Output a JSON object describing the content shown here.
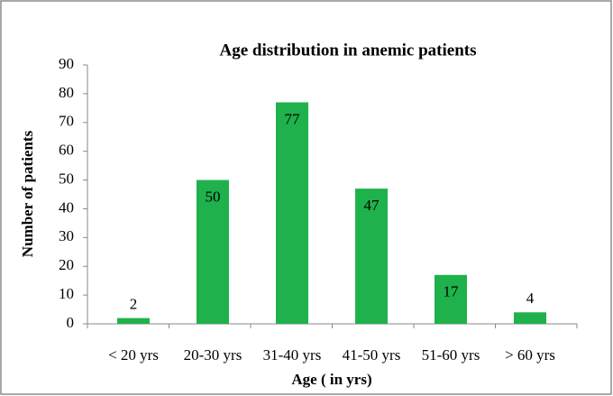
{
  "chart_data": {
    "type": "bar",
    "title": "Age distribution in anemic patients",
    "x_label": "Age ( in yrs)",
    "y_label": "Number of patients",
    "categories": [
      "< 20 yrs",
      "20-30 yrs",
      "31-40 yrs",
      "41-50 yrs",
      "51-60 yrs",
      "> 60 yrs"
    ],
    "values": [
      2,
      50,
      77,
      47,
      17,
      4
    ],
    "color": "#1fb14b",
    "ylim": [
      0,
      90
    ],
    "yticks": [
      0,
      10,
      20,
      30,
      40,
      50,
      60,
      70,
      80,
      90
    ]
  }
}
